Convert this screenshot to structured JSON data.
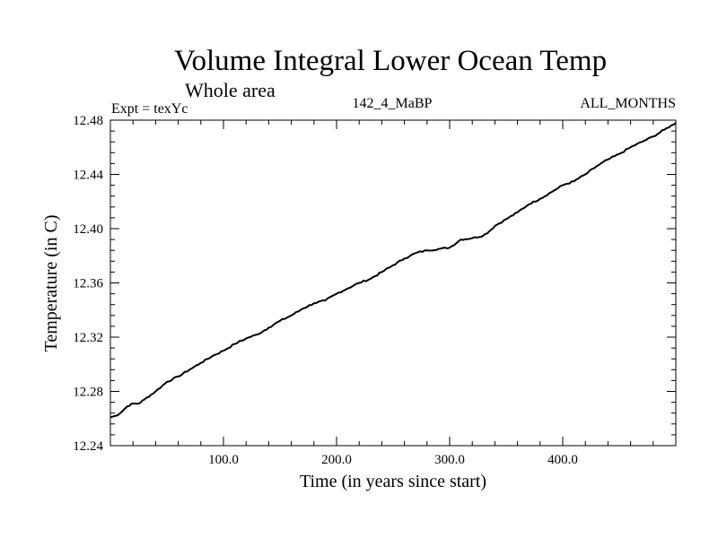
{
  "chart_data": {
    "type": "line",
    "title": "Volume Integral Lower Ocean Temp",
    "subtitle": "Whole area",
    "annotations": {
      "left": "Expt = texYc",
      "center": "142_4_MaBP",
      "right": "ALL_MONTHS"
    },
    "xlabel": "Time (in years since start)",
    "ylabel": "Temperature (in C)",
    "xlim": [
      0,
      500
    ],
    "ylim": [
      12.24,
      12.48
    ],
    "x_tick_values": [
      100,
      200,
      300,
      400
    ],
    "x_tick_labels": [
      "100.0",
      "200.0",
      "300.0",
      "400.0"
    ],
    "y_tick_values": [
      12.24,
      12.28,
      12.32,
      12.36,
      12.4,
      12.44,
      12.48
    ],
    "y_tick_labels": [
      "12.24",
      "12.28",
      "12.32",
      "12.36",
      "12.40",
      "12.44",
      "12.48"
    ],
    "grid": false,
    "line_color": "#000000",
    "series": [
      {
        "x": [
          0,
          5,
          10,
          15,
          20,
          25,
          30,
          40,
          50,
          60,
          70,
          80,
          90,
          100,
          110,
          120,
          130,
          140,
          150,
          160,
          170,
          180,
          190,
          200,
          210,
          220,
          230,
          240,
          250,
          260,
          270,
          280,
          290,
          300,
          310,
          320,
          330,
          335,
          340,
          350,
          360,
          370,
          380,
          390,
          400,
          410,
          420,
          430,
          440,
          450,
          460,
          470,
          480,
          490,
          500
        ],
        "y": [
          12.261,
          12.262,
          12.265,
          12.269,
          12.271,
          12.271,
          12.274,
          12.28,
          12.287,
          12.291,
          12.296,
          12.301,
          12.306,
          12.31,
          12.315,
          12.319,
          12.322,
          12.327,
          12.332,
          12.336,
          12.341,
          12.345,
          12.347,
          12.352,
          12.356,
          12.36,
          12.363,
          12.368,
          12.373,
          12.378,
          12.382,
          12.384,
          12.385,
          12.386,
          12.392,
          12.393,
          12.395,
          12.398,
          12.402,
          12.407,
          12.412,
          12.418,
          12.422,
          12.427,
          12.432,
          12.435,
          12.44,
          12.446,
          12.451,
          12.455,
          12.46,
          12.464,
          12.468,
          12.473,
          12.478
        ]
      }
    ]
  }
}
